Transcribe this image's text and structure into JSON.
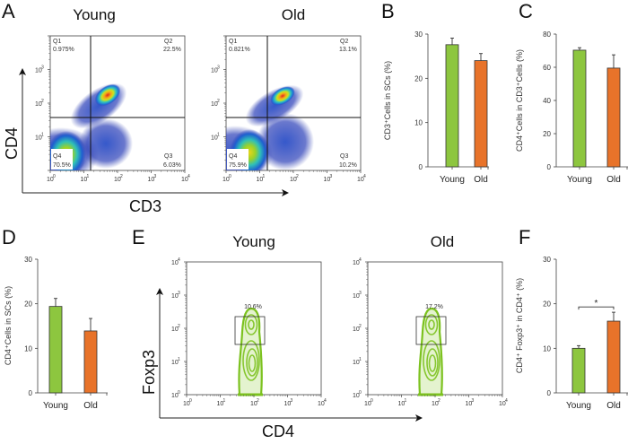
{
  "figure": {
    "panels": {
      "A": {
        "letter": "A",
        "x_axis_label": "CD3",
        "y_axis_label": "CD4",
        "plots": [
          {
            "title": "Young",
            "quadrants": {
              "Q1": {
                "label": "Q1",
                "value": "0.975%"
              },
              "Q2": {
                "label": "Q2",
                "value": "22.5%"
              },
              "Q3": {
                "label": "Q3",
                "value": "6.03%"
              },
              "Q4": {
                "label": "Q4",
                "value": "70.5%"
              }
            }
          },
          {
            "title": "Old",
            "quadrants": {
              "Q1": {
                "label": "Q1",
                "value": "0.821%"
              },
              "Q2": {
                "label": "Q2",
                "value": "13.1%"
              },
              "Q3": {
                "label": "Q3",
                "value": "10.2%"
              },
              "Q4": {
                "label": "Q4",
                "value": "75.9%"
              }
            }
          }
        ],
        "log_ticks": [
          "10",
          "10",
          "10",
          "10",
          "10"
        ],
        "log_exponents": [
          "0",
          "1",
          "2",
          "3",
          "4"
        ],
        "y_log_exponents": [
          "1",
          "2",
          "3"
        ]
      },
      "E": {
        "letter": "E",
        "x_axis_label": "CD4",
        "y_axis_label": "Foxp3",
        "plots": [
          {
            "title": "Young",
            "gate_value": "10.6%"
          },
          {
            "title": "Old",
            "gate_value": "17.2%"
          }
        ],
        "log_exponents": [
          "0",
          "1",
          "2",
          "3",
          "4"
        ]
      }
    },
    "colors": {
      "young": "#8dc63f",
      "old": "#e8732a",
      "contour": "#7cc21f",
      "axis": "#333333"
    }
  },
  "chart_data": [
    {
      "panel": "B",
      "type": "bar",
      "title": "",
      "categories": [
        "Young",
        "Old"
      ],
      "values": [
        27.6,
        24.0
      ],
      "errors": [
        1.5,
        1.6
      ],
      "xlabel": "",
      "ylabel": "CD3⁺Cells in SCs (%)",
      "ylim": [
        0,
        30
      ],
      "yticks": [
        0,
        10,
        20,
        30
      ],
      "grid": false
    },
    {
      "panel": "C",
      "type": "bar",
      "title": "",
      "categories": [
        "Young",
        "Old"
      ],
      "values": [
        70.3,
        59.5
      ],
      "errors": [
        1.5,
        8.0
      ],
      "xlabel": "",
      "ylabel": "CD4⁺Cells in CD3⁺Cells (%)",
      "ylim": [
        0,
        80
      ],
      "yticks": [
        0,
        20,
        40,
        60,
        80
      ],
      "grid": false
    },
    {
      "panel": "D",
      "type": "bar",
      "title": "",
      "categories": [
        "Young",
        "Old"
      ],
      "values": [
        19.4,
        13.9
      ],
      "errors": [
        1.8,
        2.8
      ],
      "xlabel": "",
      "ylabel": "CD4⁺Cells in SCs (%)",
      "ylim": [
        0,
        30
      ],
      "yticks": [
        0,
        10,
        20,
        30
      ],
      "grid": false
    },
    {
      "panel": "F",
      "type": "bar",
      "title": "",
      "categories": [
        "Young",
        "Old"
      ],
      "values": [
        10.0,
        16.1
      ],
      "errors": [
        0.6,
        2.0
      ],
      "xlabel": "",
      "ylabel": "CD4⁺ Foxp3⁺ in CD4⁺ (%)",
      "ylim": [
        0,
        30
      ],
      "yticks": [
        0,
        10,
        20,
        30
      ],
      "annotation": "*",
      "grid": false
    }
  ]
}
